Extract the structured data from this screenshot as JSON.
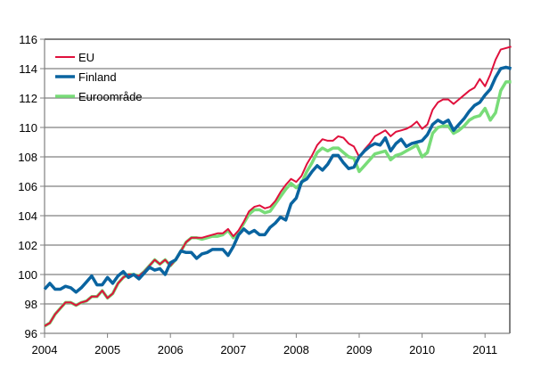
{
  "chart_data": {
    "type": "line",
    "title": "",
    "xlabel": "",
    "ylabel": "",
    "x_start": "2004-01",
    "x_frequency": "monthly",
    "x_ticks": [
      "2004",
      "2005",
      "2006",
      "2007",
      "2008",
      "2009",
      "2010",
      "2011"
    ],
    "ylim": [
      96,
      116
    ],
    "y_ticks": [
      96,
      98,
      100,
      102,
      104,
      106,
      108,
      110,
      112,
      114,
      116
    ],
    "grid": "horizontal",
    "legend_position": "top-left",
    "series": [
      {
        "name": "EU",
        "color": "#e0103c",
        "values": [
          96.5,
          96.7,
          97.3,
          97.7,
          98.1,
          98.1,
          97.9,
          98.1,
          98.2,
          98.5,
          98.5,
          98.9,
          98.4,
          98.7,
          99.4,
          99.8,
          100.0,
          100.0,
          99.9,
          100.2,
          100.6,
          101.0,
          100.7,
          101.0,
          100.6,
          101.0,
          101.6,
          102.2,
          102.5,
          102.5,
          102.5,
          102.6,
          102.7,
          102.8,
          102.8,
          103.1,
          102.6,
          103.0,
          103.6,
          104.3,
          104.6,
          104.7,
          104.5,
          104.6,
          105.0,
          105.6,
          106.1,
          106.5,
          106.3,
          106.7,
          107.5,
          108.1,
          108.8,
          109.2,
          109.1,
          109.1,
          109.4,
          109.3,
          108.9,
          108.7,
          108.0,
          108.5,
          108.9,
          109.4,
          109.6,
          109.8,
          109.4,
          109.7,
          109.8,
          109.9,
          110.1,
          110.4,
          109.9,
          110.2,
          111.2,
          111.7,
          111.9,
          111.9,
          111.6,
          111.9,
          112.2,
          112.5,
          112.7,
          113.3,
          112.8,
          113.6,
          114.6,
          115.3,
          115.4,
          115.5
        ]
      },
      {
        "name": "Finland",
        "color": "#0a64a0",
        "values": [
          99.0,
          99.4,
          99.0,
          99.0,
          99.2,
          99.1,
          98.8,
          99.1,
          99.5,
          99.9,
          99.3,
          99.3,
          99.8,
          99.4,
          99.9,
          100.2,
          99.8,
          100.0,
          99.7,
          100.1,
          100.5,
          100.3,
          100.4,
          100.0,
          100.8,
          101.0,
          101.6,
          101.5,
          101.5,
          101.1,
          101.4,
          101.5,
          101.7,
          101.7,
          101.7,
          101.3,
          101.9,
          102.7,
          103.1,
          102.8,
          103.0,
          102.7,
          102.7,
          103.2,
          103.5,
          103.9,
          103.7,
          104.8,
          105.2,
          106.3,
          106.5,
          107.0,
          107.4,
          107.1,
          107.5,
          108.1,
          108.1,
          107.6,
          107.2,
          107.3,
          108.0,
          108.4,
          108.7,
          108.9,
          108.8,
          109.3,
          108.4,
          108.9,
          109.2,
          108.7,
          108.9,
          109.0,
          109.1,
          109.5,
          110.2,
          110.5,
          110.3,
          110.5,
          109.8,
          110.2,
          110.6,
          111.1,
          111.5,
          111.7,
          112.2,
          112.6,
          113.4,
          114.0,
          114.1,
          114.0
        ]
      },
      {
        "name": "Euroområde",
        "color": "#78dc78",
        "values": [
          96.5,
          96.7,
          97.3,
          97.7,
          98.1,
          98.1,
          97.9,
          98.1,
          98.2,
          98.5,
          98.5,
          98.9,
          98.4,
          98.7,
          99.4,
          99.8,
          100.0,
          100.0,
          99.9,
          100.2,
          100.6,
          101.0,
          100.7,
          101.0,
          100.6,
          101.0,
          101.6,
          102.2,
          102.5,
          102.5,
          102.4,
          102.5,
          102.6,
          102.6,
          102.7,
          103.0,
          102.5,
          102.9,
          103.5,
          104.1,
          104.4,
          104.4,
          104.2,
          104.3,
          104.8,
          105.3,
          105.8,
          106.2,
          105.9,
          106.2,
          107.0,
          107.6,
          108.3,
          108.6,
          108.4,
          108.6,
          108.6,
          108.3,
          108.0,
          107.9,
          107.0,
          107.4,
          107.8,
          108.2,
          108.3,
          108.4,
          107.8,
          108.1,
          108.2,
          108.4,
          108.6,
          108.8,
          108.0,
          108.3,
          109.6,
          110.0,
          110.1,
          110.1,
          109.6,
          109.8,
          110.1,
          110.5,
          110.7,
          110.8,
          111.3,
          110.5,
          111.0,
          112.5,
          113.1,
          113.1
        ]
      }
    ]
  }
}
